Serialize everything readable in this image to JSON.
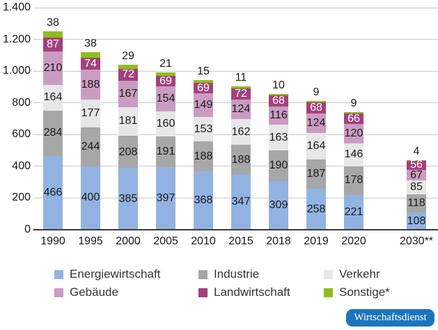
{
  "chart_data": {
    "type": "bar",
    "stacked": true,
    "title": "",
    "xlabel": "",
    "ylabel": "",
    "ylim": [
      0,
      1400
    ],
    "grid": "horizontal",
    "legend_position": "bottom",
    "categories": [
      "1990",
      "1995",
      "2000",
      "2005",
      "2010",
      "2015",
      "2018",
      "2019",
      "2020",
      "2030**"
    ],
    "series": [
      {
        "name": "Energiewirtschaft",
        "color": "#92b3e1",
        "label_color": "#1a1a1a",
        "label_position": "center",
        "values": [
          466,
          400,
          385,
          397,
          368,
          347,
          309,
          258,
          221,
          108
        ]
      },
      {
        "name": "Industrie",
        "color": "#a7a7a7",
        "label_color": "#1a1a1a",
        "label_position": "center",
        "values": [
          284,
          244,
          208,
          191,
          188,
          188,
          190,
          187,
          178,
          118
        ]
      },
      {
        "name": "Verkehr",
        "color": "#e7e7e7",
        "label_color": "#1a1a1a",
        "label_position": "center",
        "values": [
          164,
          177,
          181,
          160,
          153,
          162,
          163,
          164,
          146,
          85
        ]
      },
      {
        "name": "Gebäude",
        "color": "#ca9cc2",
        "label_color": "#1a1a1a",
        "label_position": "center",
        "values": [
          210,
          188,
          167,
          154,
          149,
          124,
          116,
          124,
          120,
          67
        ]
      },
      {
        "name": "Landwirtschaft",
        "color": "#a3417d",
        "label_color": "#ffffff",
        "label_position": "center",
        "values": [
          87,
          74,
          72,
          69,
          69,
          72,
          68,
          68,
          66,
          56
        ]
      },
      {
        "name": "Sonstige*",
        "color": "#90be1a",
        "label_color": "#1a1a1a",
        "label_position": "above",
        "values": [
          38,
          38,
          29,
          21,
          15,
          11,
          10,
          9,
          9,
          4
        ]
      }
    ],
    "y_ticks": [
      {
        "value": 0,
        "label": "0"
      },
      {
        "value": 200,
        "label": "200"
      },
      {
        "value": 400,
        "label": "400"
      },
      {
        "value": 600,
        "label": "600"
      },
      {
        "value": 800,
        "label": "800"
      },
      {
        "value": 1000,
        "label": "1.000"
      },
      {
        "value": 1200,
        "label": "1.200"
      },
      {
        "value": 1400,
        "label": "1.400"
      }
    ],
    "colors": {
      "gridline": "#c9c9c9",
      "axis_line": "#3a3a3a",
      "text": "#1a1a1a"
    }
  },
  "branding": {
    "badge_label": "Wirtschaftsdienst",
    "badge_color": "#1c75bc"
  }
}
